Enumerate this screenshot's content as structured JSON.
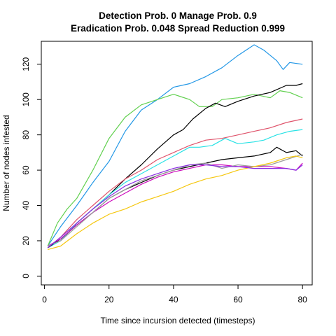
{
  "chart_data": {
    "type": "line",
    "title_line1": "Detection Prob. 0 Manage Prob. 0.9",
    "title_line2": "Eradication Prob. 0.048 Spread Reduction 0.999",
    "xlabel": "Time since incursion detected (timesteps)",
    "ylabel": "Number of nodes infested",
    "xlim": [
      -1,
      83
    ],
    "ylim": [
      -5,
      133
    ],
    "xticks": [
      0,
      20,
      40,
      60,
      80
    ],
    "yticks": [
      0,
      20,
      40,
      60,
      80,
      100,
      120
    ],
    "grid": false,
    "legend": "none",
    "series": [
      {
        "color": "#2297E6",
        "points": [
          [
            1,
            17
          ],
          [
            5,
            28
          ],
          [
            10,
            40
          ],
          [
            15,
            53
          ],
          [
            20,
            65
          ],
          [
            25,
            82
          ],
          [
            30,
            94
          ],
          [
            35,
            100
          ],
          [
            40,
            107
          ],
          [
            45,
            109
          ],
          [
            50,
            113
          ],
          [
            55,
            118
          ],
          [
            60,
            125
          ],
          [
            65,
            131
          ],
          [
            68,
            128
          ],
          [
            72,
            122
          ],
          [
            74,
            117
          ],
          [
            76,
            121
          ],
          [
            80,
            120
          ]
        ]
      },
      {
        "color": "#61D04F",
        "points": [
          [
            1,
            17
          ],
          [
            4,
            30
          ],
          [
            7,
            38
          ],
          [
            10,
            44
          ],
          [
            15,
            60
          ],
          [
            20,
            78
          ],
          [
            25,
            90
          ],
          [
            30,
            97
          ],
          [
            35,
            100
          ],
          [
            40,
            103
          ],
          [
            45,
            100
          ],
          [
            48,
            96
          ],
          [
            52,
            96
          ],
          [
            55,
            100
          ],
          [
            60,
            101
          ],
          [
            65,
            103
          ],
          [
            70,
            101
          ],
          [
            73,
            105
          ],
          [
            76,
            104
          ],
          [
            80,
            101
          ]
        ]
      },
      {
        "color": "#000000",
        "points": [
          [
            1,
            17
          ],
          [
            5,
            20
          ],
          [
            10,
            30
          ],
          [
            15,
            38
          ],
          [
            20,
            46
          ],
          [
            25,
            55
          ],
          [
            30,
            63
          ],
          [
            35,
            72
          ],
          [
            40,
            80
          ],
          [
            43,
            83
          ],
          [
            46,
            89
          ],
          [
            50,
            95
          ],
          [
            53,
            98
          ],
          [
            56,
            96
          ],
          [
            60,
            99
          ],
          [
            65,
            102
          ],
          [
            70,
            104
          ],
          [
            75,
            108
          ],
          [
            78,
            108
          ],
          [
            80,
            109
          ]
        ]
      },
      {
        "color": "#DF536B",
        "points": [
          [
            1,
            16
          ],
          [
            5,
            22
          ],
          [
            10,
            32
          ],
          [
            15,
            40
          ],
          [
            20,
            48
          ],
          [
            25,
            55
          ],
          [
            30,
            60
          ],
          [
            35,
            66
          ],
          [
            40,
            70
          ],
          [
            45,
            74
          ],
          [
            50,
            77
          ],
          [
            55,
            78
          ],
          [
            60,
            80
          ],
          [
            65,
            82
          ],
          [
            70,
            84
          ],
          [
            75,
            87
          ],
          [
            80,
            89
          ]
        ]
      },
      {
        "color": "#28E2E5",
        "points": [
          [
            1,
            16
          ],
          [
            5,
            20
          ],
          [
            10,
            30
          ],
          [
            15,
            38
          ],
          [
            20,
            46
          ],
          [
            25,
            53
          ],
          [
            30,
            58
          ],
          [
            35,
            63
          ],
          [
            40,
            68
          ],
          [
            45,
            73
          ],
          [
            48,
            73
          ],
          [
            52,
            74
          ],
          [
            56,
            78
          ],
          [
            60,
            75
          ],
          [
            65,
            76
          ],
          [
            68,
            77
          ],
          [
            72,
            80
          ],
          [
            76,
            82
          ],
          [
            80,
            83
          ]
        ]
      },
      {
        "color": "#000000",
        "points": [
          [
            1,
            16
          ],
          [
            5,
            21
          ],
          [
            10,
            29
          ],
          [
            15,
            36
          ],
          [
            20,
            44
          ],
          [
            25,
            49
          ],
          [
            30,
            53
          ],
          [
            35,
            57
          ],
          [
            40,
            60
          ],
          [
            45,
            62
          ],
          [
            50,
            64
          ],
          [
            55,
            66
          ],
          [
            60,
            67
          ],
          [
            65,
            68
          ],
          [
            70,
            70
          ],
          [
            72,
            73
          ],
          [
            75,
            70
          ],
          [
            78,
            71
          ],
          [
            80,
            68
          ]
        ]
      },
      {
        "color": "#CD0BBC",
        "points": [
          [
            1,
            17
          ],
          [
            5,
            21
          ],
          [
            10,
            29
          ],
          [
            15,
            36
          ],
          [
            20,
            42
          ],
          [
            25,
            47
          ],
          [
            30,
            52
          ],
          [
            35,
            56
          ],
          [
            40,
            59
          ],
          [
            45,
            61
          ],
          [
            50,
            63
          ],
          [
            55,
            63
          ],
          [
            60,
            62
          ],
          [
            65,
            62
          ],
          [
            70,
            62
          ],
          [
            75,
            61
          ],
          [
            78,
            60
          ],
          [
            80,
            64
          ]
        ]
      },
      {
        "color": "#9E9E9E",
        "points": [
          [
            1,
            17
          ],
          [
            5,
            20
          ],
          [
            10,
            28
          ],
          [
            15,
            36
          ],
          [
            20,
            44
          ],
          [
            25,
            49
          ],
          [
            30,
            54
          ],
          [
            35,
            57
          ],
          [
            40,
            60
          ],
          [
            45,
            63
          ],
          [
            50,
            64
          ],
          [
            55,
            61
          ],
          [
            60,
            63
          ],
          [
            65,
            62
          ],
          [
            70,
            63
          ],
          [
            75,
            66
          ],
          [
            80,
            69
          ]
        ]
      },
      {
        "color": "#F5C710",
        "points": [
          [
            1,
            15
          ],
          [
            5,
            17
          ],
          [
            10,
            24
          ],
          [
            15,
            30
          ],
          [
            20,
            35
          ],
          [
            25,
            38
          ],
          [
            30,
            42
          ],
          [
            35,
            45
          ],
          [
            40,
            48
          ],
          [
            45,
            52
          ],
          [
            50,
            55
          ],
          [
            55,
            57
          ],
          [
            60,
            60
          ],
          [
            65,
            62
          ],
          [
            70,
            64
          ],
          [
            75,
            67
          ],
          [
            78,
            68
          ],
          [
            80,
            67
          ]
        ]
      },
      {
        "color": "#8A2BE2",
        "points": [
          [
            1,
            16
          ],
          [
            5,
            22
          ],
          [
            10,
            30
          ],
          [
            15,
            38
          ],
          [
            20,
            45
          ],
          [
            25,
            51
          ],
          [
            30,
            55
          ],
          [
            35,
            58
          ],
          [
            40,
            61
          ],
          [
            45,
            63
          ],
          [
            50,
            63
          ],
          [
            55,
            62
          ],
          [
            60,
            62
          ],
          [
            65,
            61
          ],
          [
            70,
            61
          ],
          [
            75,
            61
          ],
          [
            78,
            60
          ],
          [
            80,
            63
          ]
        ]
      }
    ]
  }
}
